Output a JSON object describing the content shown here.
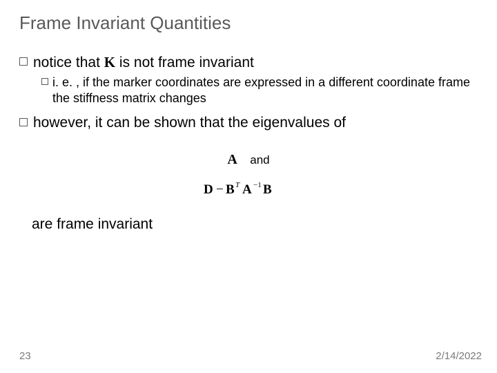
{
  "title": "Frame Invariant Quantities",
  "bullets": {
    "b1_prefix": "notice that ",
    "b1_symbol": "K",
    "b1_suffix": " is not frame invariant",
    "b2": "i. e. , if the marker coordinates are expressed in a different coordinate frame the stiffness matrix changes",
    "b3": "however, it can be shown that the eigenvalues of"
  },
  "math": {
    "A": "A",
    "and": "and",
    "eq_D": "D",
    "eq_minus": "−",
    "eq_B": "B",
    "eq_T": "T",
    "eq_A": "A",
    "eq_neg1": "−1",
    "eq_B2": "B"
  },
  "conclusion": "are frame invariant",
  "footer": {
    "page": "23",
    "date": "2/14/2022"
  },
  "colors": {
    "title": "#595959",
    "text": "#000000",
    "footer": "#7a7a7a",
    "bg": "#ffffff",
    "bullet_border": "#595959"
  },
  "fonts": {
    "title_size": 26,
    "b1_size": 21,
    "b2_size": 18,
    "footer_size": 15
  }
}
